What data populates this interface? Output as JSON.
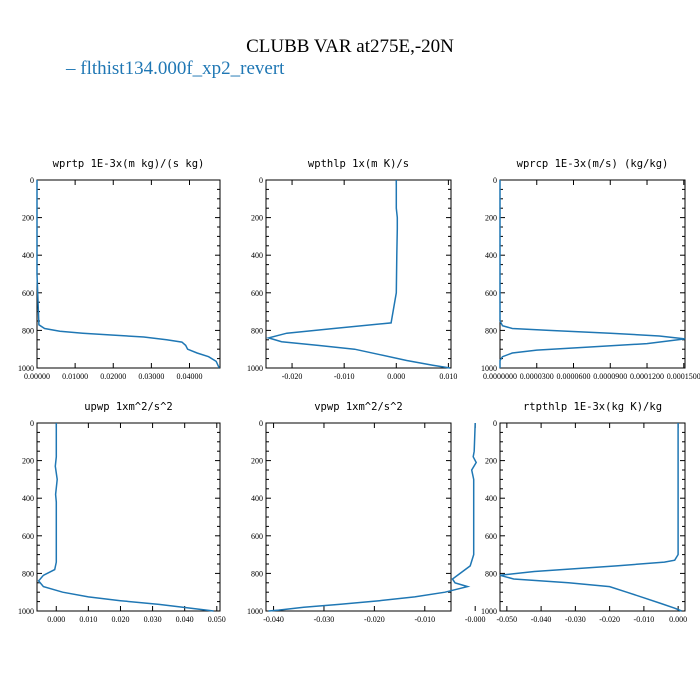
{
  "header": {
    "title": "CLUBB VAR at275E,-20N",
    "legend_label": "flthist134.000f_xp2_revert",
    "legend_color": "#1f77b4"
  },
  "chart_data": [
    {
      "type": "line",
      "title": "wprtp  1E-3x(m kg)/(s kg)",
      "xlim": [
        0.0,
        0.048
      ],
      "ylim": [
        0,
        1000
      ],
      "y_inverted": true,
      "xticks": [
        0.0,
        0.01,
        0.02,
        0.03,
        0.04
      ],
      "xtick_labels": [
        "0.00000",
        "0.01000",
        "0.02000",
        "0.03000",
        "0.04000"
      ],
      "yticks": [
        0,
        200,
        400,
        600,
        800,
        1000
      ],
      "ytick_labels": [
        "0",
        "200",
        "400",
        "600",
        "800",
        "1000"
      ],
      "series": [
        {
          "color": "#1f77b4",
          "x": [
            0.0,
            0.0,
            0.0,
            0.0005,
            0.002,
            0.006,
            0.012,
            0.02,
            0.028,
            0.034,
            0.038,
            0.039,
            0.0395,
            0.042,
            0.045,
            0.047,
            0.0478
          ],
          "y": [
            0,
            200,
            500,
            770,
            790,
            805,
            815,
            825,
            835,
            850,
            862,
            880,
            900,
            920,
            940,
            965,
            1000
          ]
        }
      ]
    },
    {
      "type": "line",
      "title": "wpthlp  1x(m K)/s",
      "xlim": [
        -0.025,
        0.0105
      ],
      "ylim": [
        0,
        1000
      ],
      "y_inverted": true,
      "xticks": [
        -0.02,
        -0.01,
        0.0,
        0.01
      ],
      "xtick_labels": [
        "-0.020",
        "-0.010",
        "0.000",
        "0.010"
      ],
      "yticks": [
        0,
        200,
        400,
        600,
        800,
        1000
      ],
      "ytick_labels": [
        "0",
        "200",
        "400",
        "600",
        "800",
        "1000"
      ],
      "series": [
        {
          "color": "#1f77b4",
          "x": [
            0.0,
            0.0,
            0.0002,
            0.0002,
            0.0001,
            0.0,
            -0.001,
            -0.012,
            -0.021,
            -0.0245,
            -0.022,
            -0.015,
            -0.008,
            -0.003,
            0.002,
            0.007,
            0.0103
          ],
          "y": [
            0,
            150,
            200,
            260,
            400,
            600,
            760,
            790,
            815,
            840,
            860,
            880,
            900,
            930,
            960,
            985,
            1000
          ]
        }
      ]
    },
    {
      "type": "line",
      "title": "wprcp  1E-3x(m/s) (kg/kg)",
      "xlim": [
        0.0,
        0.000151
      ],
      "ylim": [
        0,
        1000
      ],
      "y_inverted": true,
      "xticks": [
        0.0,
        3e-05,
        6e-05,
        9e-05,
        0.00012,
        0.00015
      ],
      "xtick_labels": [
        "0.0000000",
        "0.0000300",
        "0.0000600",
        "0.0000900",
        "0.0001200",
        "0.0001500"
      ],
      "yticks": [
        0,
        200,
        400,
        600,
        800,
        1000
      ],
      "ytick_labels": [
        "0",
        "200",
        "400",
        "600",
        "800",
        "1000"
      ],
      "series": [
        {
          "color": "#1f77b4",
          "x": [
            0.0,
            0.0,
            0.0,
            2e-06,
            1e-05,
            4e-05,
            9e-05,
            0.00013,
            0.000151,
            0.00012,
            7e-05,
            3e-05,
            1e-05,
            2e-06,
            0.0,
            0.0
          ],
          "y": [
            0,
            400,
            750,
            775,
            790,
            800,
            815,
            830,
            845,
            870,
            890,
            905,
            920,
            940,
            960,
            1000
          ]
        }
      ]
    },
    {
      "type": "line",
      "title": "upwp  1xm^2/s^2",
      "xlim": [
        -0.006,
        0.051
      ],
      "ylim": [
        0,
        1000
      ],
      "y_inverted": true,
      "xticks": [
        0.0,
        0.01,
        0.02,
        0.03,
        0.04,
        0.05
      ],
      "xtick_labels": [
        "0.000",
        "0.010",
        "0.020",
        "0.030",
        "0.040",
        "0.050"
      ],
      "yticks": [
        0,
        200,
        400,
        600,
        800,
        1000
      ],
      "ytick_labels": [
        "0",
        "200",
        "400",
        "600",
        "800",
        "1000"
      ],
      "series": [
        {
          "color": "#1f77b4",
          "x": [
            0.0,
            0.0,
            -0.0003,
            0.0003,
            -0.0002,
            0.0,
            0.0,
            -0.0005,
            -0.004,
            -0.0055,
            -0.004,
            0.002,
            0.01,
            0.02,
            0.032,
            0.042,
            0.049
          ],
          "y": [
            0,
            180,
            230,
            300,
            380,
            420,
            740,
            780,
            810,
            840,
            870,
            900,
            925,
            945,
            965,
            985,
            1000
          ]
        }
      ]
    },
    {
      "type": "line",
      "title": "vpwp  1xm^2/s^2",
      "xlim": [
        -0.0415,
        -0.0048
      ],
      "ylim": [
        0,
        1000
      ],
      "y_inverted": true,
      "xticks": [
        -0.04,
        -0.03,
        -0.02,
        -0.01,
        0.0
      ],
      "xtick_labels": [
        "-0.040",
        "-0.030",
        "-0.020",
        "-0.010",
        "-0.000"
      ],
      "yticks": [
        0,
        200,
        400,
        600,
        800,
        1000
      ],
      "ytick_labels": [
        "0",
        "200",
        "400",
        "600",
        "800",
        "1000"
      ],
      "series": [
        {
          "color": "#1f77b4",
          "x": [
            0.0,
            -0.0002,
            -0.0004,
            0.0002,
            -0.0007,
            -0.0003,
            -0.0003,
            -0.001,
            -0.003,
            -0.0045,
            -0.004,
            -0.0015,
            -0.006,
            -0.012,
            -0.019,
            -0.027,
            -0.034,
            -0.039,
            -0.041
          ],
          "y": [
            0,
            150,
            180,
            210,
            250,
            300,
            700,
            760,
            800,
            830,
            850,
            870,
            900,
            925,
            945,
            965,
            980,
            995,
            1000
          ]
        }
      ]
    },
    {
      "type": "line",
      "title": "rtpthlp  1E-3x(kg K)/kg",
      "xlim": [
        -0.052,
        0.002
      ],
      "ylim": [
        0,
        1000
      ],
      "y_inverted": true,
      "xticks": [
        -0.05,
        -0.04,
        -0.03,
        -0.02,
        -0.01,
        0.0
      ],
      "xtick_labels": [
        "-0.050",
        "-0.040",
        "-0.030",
        "-0.020",
        "-0.010",
        "0.000"
      ],
      "yticks": [
        0,
        200,
        400,
        600,
        800,
        1000
      ],
      "ytick_labels": [
        "0",
        "200",
        "400",
        "600",
        "800",
        "1000"
      ],
      "series": [
        {
          "color": "#1f77b4",
          "x": [
            0.0,
            0.0,
            0.0,
            -0.001,
            -0.004,
            -0.018,
            -0.042,
            -0.052,
            -0.048,
            -0.032,
            -0.02,
            -0.015,
            -0.01,
            -0.005,
            -0.001,
            0.001
          ],
          "y": [
            0,
            400,
            700,
            730,
            740,
            760,
            790,
            810,
            830,
            850,
            870,
            900,
            930,
            960,
            985,
            1000
          ]
        }
      ]
    }
  ]
}
